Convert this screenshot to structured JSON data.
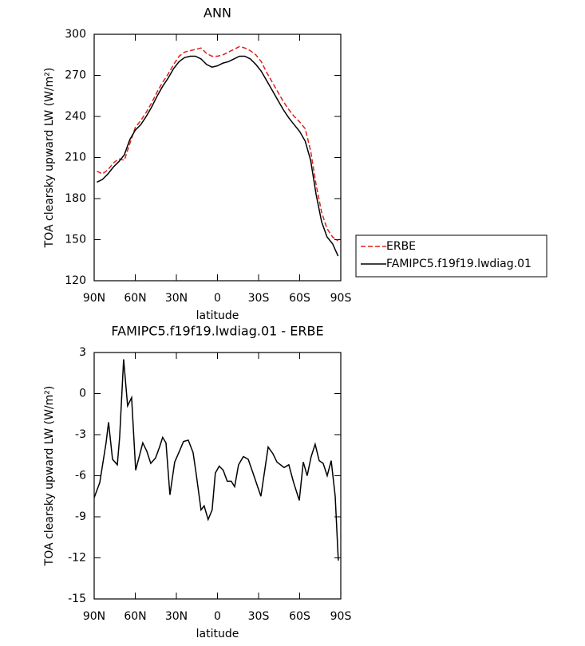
{
  "chart_data": [
    {
      "type": "line",
      "title": "ANN",
      "xlabel": "latitude",
      "ylabel": "TOA clearsky upward LW (W/m²)",
      "x": [
        88,
        84,
        80,
        76,
        72,
        68,
        64,
        60,
        56,
        52,
        48,
        44,
        40,
        36,
        32,
        28,
        24,
        20,
        16,
        12,
        8,
        4,
        0,
        -4,
        -8,
        -12,
        -16,
        -20,
        -24,
        -28,
        -32,
        -36,
        -40,
        -44,
        -48,
        -52,
        -56,
        -60,
        -64,
        -68,
        -72,
        -76,
        -80,
        -84,
        -88
      ],
      "series": [
        {
          "name": "ERBE",
          "color": "#e0201b",
          "style": "dashed",
          "values": [
            200,
            198,
            201,
            206,
            209,
            208,
            220,
            232,
            237,
            243,
            250,
            258,
            265,
            271,
            278,
            284,
            287,
            288,
            289,
            290,
            286,
            284,
            284,
            285,
            287,
            289,
            291,
            290,
            288,
            285,
            280,
            272,
            265,
            258,
            251,
            245,
            240,
            236,
            231,
            215,
            190,
            170,
            158,
            152,
            149
          ]
        },
        {
          "name": "FAMIPC5.f19f19.lwdiag.01",
          "color": "#000000",
          "style": "solid",
          "values": [
            192,
            194,
            198,
            203,
            207,
            212,
            223,
            230,
            234,
            240,
            247,
            255,
            262,
            268,
            275,
            280,
            283,
            284,
            284,
            282,
            278,
            276,
            277,
            279,
            280,
            282,
            284,
            284,
            282,
            278,
            273,
            266,
            259,
            252,
            245,
            239,
            234,
            229,
            222,
            208,
            183,
            163,
            152,
            147,
            138
          ]
        }
      ],
      "xlim": [
        90,
        -90
      ],
      "xticks": [
        {
          "value": 90,
          "label": "90N"
        },
        {
          "value": 60,
          "label": "60N"
        },
        {
          "value": 30,
          "label": "30N"
        },
        0,
        {
          "value": -30,
          "label": "30S"
        },
        {
          "value": -60,
          "label": "60S"
        },
        {
          "value": -90,
          "label": "90S"
        }
      ],
      "ylim": [
        120,
        300
      ],
      "yticks": [
        120,
        150,
        180,
        210,
        240,
        270,
        300
      ],
      "legend": "right"
    },
    {
      "type": "line",
      "title": "FAMIPC5.f19f19.lwdiag.01 - ERBE",
      "xlabel": "latitude",
      "ylabel": "TOA clearsky upward LW (W/m²)",
      "x": [
        90,
        85.9,
        81.3,
        79.5,
        76.6,
        73.1,
        71.4,
        68.5,
        65.6,
        62.7,
        59.7,
        54.5,
        51.6,
        48.7,
        45.2,
        42.3,
        40,
        37.6,
        34.7,
        31.2,
        27.7,
        24.8,
        21.3,
        17.8,
        15.5,
        12,
        9.7,
        6.8,
        3.9,
        1.6,
        -1.3,
        -4.2,
        -7.1,
        -10,
        -12.5,
        -15.4,
        -18.9,
        -22.4,
        -25.9,
        -31.7,
        -37,
        -40.5,
        -43.4,
        -48.6,
        -52.1,
        -55.6,
        -59.7,
        -62.6,
        -65.5,
        -68.4,
        -71.3,
        -74.2,
        -77.1,
        -80.1,
        -83,
        -85.9,
        -88.2
      ],
      "values": [
        -7.6,
        -6.5,
        -3.6,
        -2.1,
        -4.8,
        -5.2,
        -3.2,
        2.5,
        -0.9,
        -0.3,
        -5.6,
        -3.6,
        -4.2,
        -5.1,
        -4.7,
        -3.9,
        -3.2,
        -3.6,
        -7.4,
        -5.0,
        -4.2,
        -3.5,
        -3.4,
        -4.3,
        -5.9,
        -8.5,
        -8.2,
        -9.2,
        -8.5,
        -5.8,
        -5.3,
        -5.6,
        -6.4,
        -6.4,
        -6.8,
        -5.2,
        -4.6,
        -4.8,
        -5.8,
        -7.5,
        -3.9,
        -4.4,
        -5.0,
        -5.4,
        -5.2,
        -6.5,
        -7.8,
        -5.0,
        -6.0,
        -4.6,
        -3.7,
        -4.9,
        -5.1,
        -6.0,
        -4.9,
        -7.5,
        -12.2
      ],
      "color": "#000000",
      "xlim": [
        90,
        -90
      ],
      "xticks": [
        {
          "value": 90,
          "label": "90N"
        },
        {
          "value": 60,
          "label": "60N"
        },
        {
          "value": 30,
          "label": "30N"
        },
        0,
        {
          "value": -30,
          "label": "30S"
        },
        {
          "value": -60,
          "label": "60S"
        },
        {
          "value": -90,
          "label": "90S"
        }
      ],
      "ylim": [
        -15,
        3
      ],
      "yticks": [
        -15,
        -12,
        -9,
        -6,
        -3,
        0,
        3
      ]
    }
  ]
}
